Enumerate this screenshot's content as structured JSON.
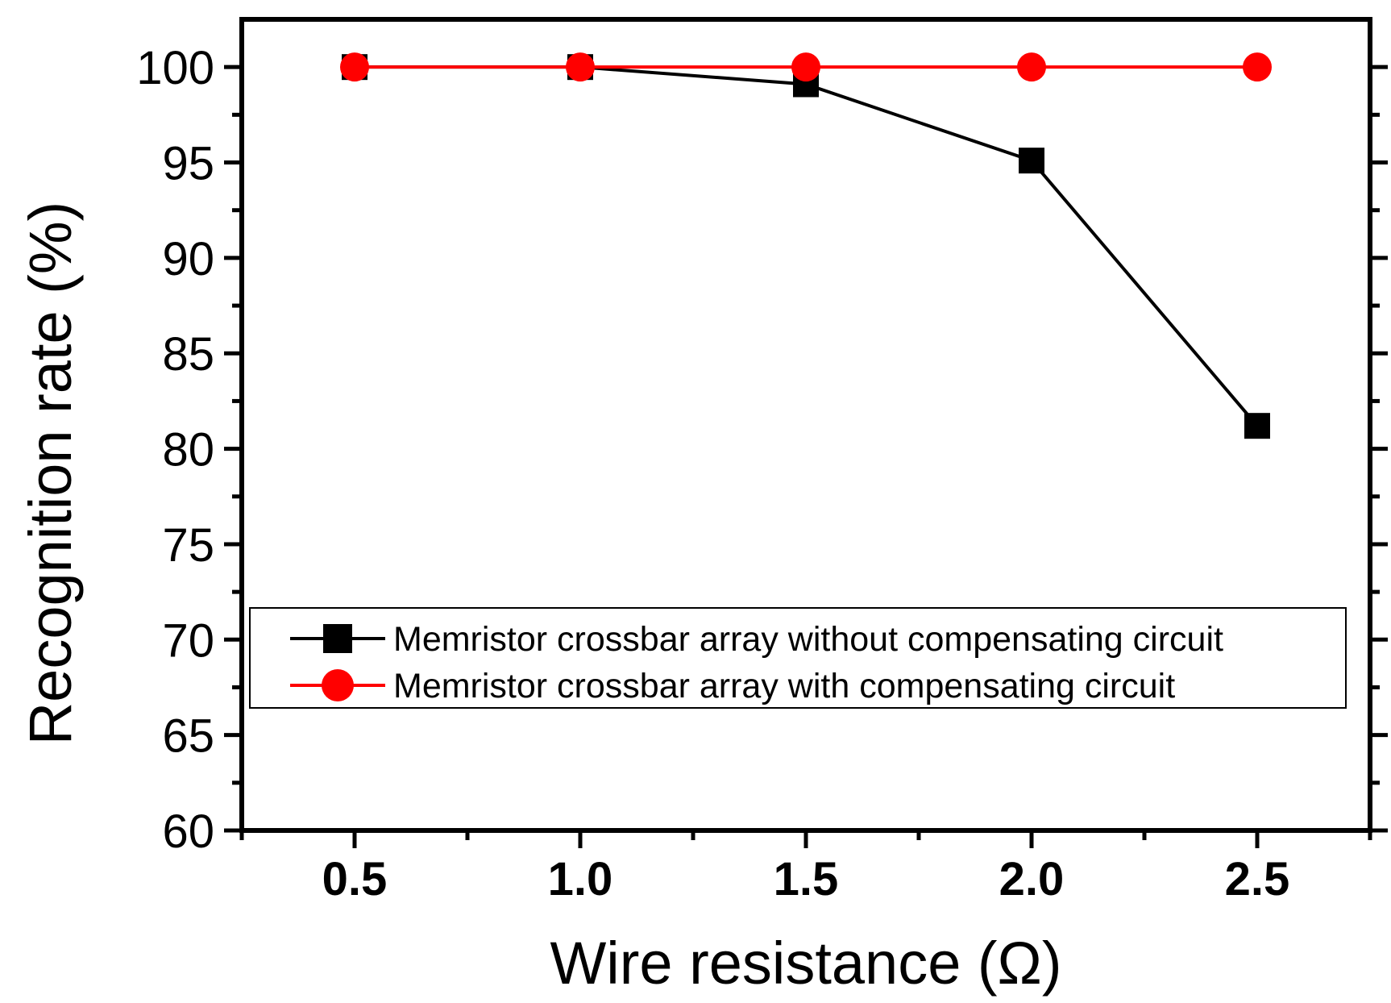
{
  "chart_data": {
    "type": "line",
    "title": "",
    "xlabel": "Wire resistance (Ω)",
    "ylabel": "Recognition rate (%)",
    "xlim": [
      0.25,
      2.75
    ],
    "ylim": [
      60,
      102.5
    ],
    "x_ticks": [
      "0.5",
      "1.0",
      "1.5",
      "2.0",
      "2.5"
    ],
    "y_ticks": [
      "60",
      "65",
      "70",
      "75",
      "80",
      "85",
      "90",
      "95",
      "100"
    ],
    "x_tick_values": [
      0.5,
      1.0,
      1.5,
      2.0,
      2.5
    ],
    "y_tick_values": [
      60,
      65,
      70,
      75,
      80,
      85,
      90,
      95,
      100
    ],
    "legend_position": "center-right",
    "series": [
      {
        "name": "Memristor crossbar array without compensating circuit",
        "color": "#000000",
        "marker": "square",
        "x": [
          0.5,
          1.0,
          1.5,
          2.0,
          2.5
        ],
        "values": [
          100,
          100,
          99.1,
          95.1,
          81.2
        ]
      },
      {
        "name": "Memristor crossbar array with compensating circuit",
        "color": "#ff0000",
        "marker": "circle",
        "x": [
          0.5,
          1.0,
          1.5,
          2.0,
          2.5
        ],
        "values": [
          100,
          100,
          100,
          100,
          100
        ]
      }
    ]
  }
}
